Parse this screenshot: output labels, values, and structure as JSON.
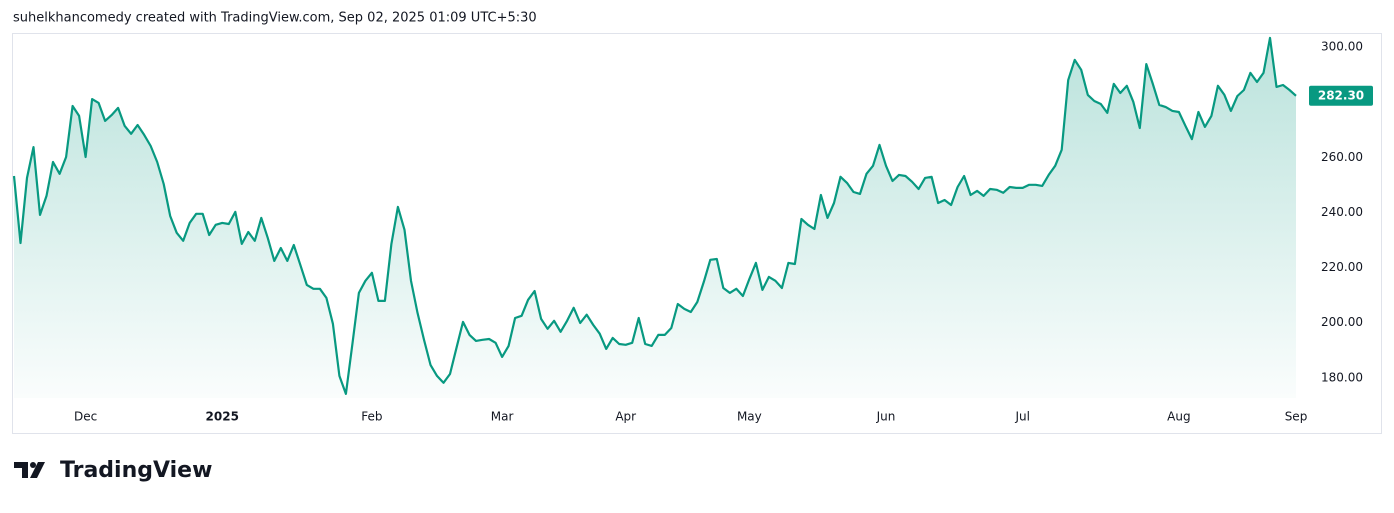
{
  "header": "suhelkhancomedy created with TradingView.com, Sep 02, 2025 01:09 UTC+5:30",
  "footer_brand": "TradingView",
  "chart_data": {
    "type": "area",
    "color": "#089981",
    "values": [
      253.2,
      228.9,
      252.5,
      263.7,
      239.1,
      246,
      258.3,
      254,
      260.1,
      278.6,
      275,
      260.1,
      281.1,
      279.7,
      273.2,
      275.3,
      277.9,
      271.4,
      268.5,
      271.7,
      268.1,
      264.1,
      258.3,
      250.3,
      238.7,
      232.6,
      229.7,
      236.2,
      239.5,
      239.5,
      231.8,
      235.5,
      236.2,
      235.8,
      240.2,
      228.6,
      232.9,
      229.7,
      238,
      230.7,
      222.4,
      227.1,
      222.4,
      228.2,
      221,
      213.7,
      212.3,
      212.3,
      209,
      199.6,
      180.7,
      174.2,
      192.3,
      210.8,
      215.2,
      218.1,
      207.9,
      207.9,
      228.6,
      242,
      233.7,
      215.2,
      203.6,
      193.8,
      184.7,
      180.7,
      178.2,
      181.4,
      190.9,
      200.3,
      195.6,
      193.4,
      193.8,
      194.1,
      192.7,
      187.6,
      191.6,
      201.7,
      202.5,
      208.3,
      211.5,
      201.4,
      197.8,
      200.7,
      196.7,
      200.7,
      205.4,
      199.9,
      202.9,
      199.2,
      196,
      190.5,
      194.5,
      192.3,
      192,
      192.7,
      201.7,
      192.3,
      191.6,
      195.6,
      195.6,
      198.1,
      206.8,
      205,
      203.9,
      207.5,
      214.8,
      222.8,
      223.1,
      212.6,
      210.8,
      212.3,
      209.7,
      215.9,
      221.7,
      211.9,
      216.6,
      215.2,
      212.6,
      221.7,
      221.3,
      237.6,
      235.5,
      234,
      246.3,
      238,
      243.4,
      252.9,
      250.7,
      247.4,
      246.7,
      254,
      256.9,
      264.5,
      256.9,
      251.4,
      253.6,
      253.2,
      251.1,
      248.5,
      252.5,
      252.9,
      243.4,
      244.5,
      242.7,
      249.2,
      253.2,
      246.3,
      247.8,
      246,
      248.5,
      248.2,
      247.1,
      249.2,
      248.9,
      248.9,
      250,
      250,
      249.6,
      253.6,
      256.9,
      262.7,
      288,
      295.3,
      291.7,
      282.6,
      280.4,
      279.3,
      276.1,
      286.6,
      283.3,
      285.9,
      280.1,
      270.6,
      293.8,
      286.6,
      279,
      278.2,
      276.8,
      276.4,
      271.4,
      266.6,
      276.4,
      271,
      275,
      285.9,
      282.6,
      276.8,
      282.2,
      284.4,
      290.6,
      287.3,
      290.6,
      303.3,
      285.5,
      286.2,
      284.4,
      282.3
    ],
    "xlim": [
      0,
      197
    ],
    "xticks": [
      {
        "value": 11,
        "label": "Dec"
      },
      {
        "value": 32,
        "label": "2025"
      },
      {
        "value": 55,
        "label": "Feb"
      },
      {
        "value": 75,
        "label": "Mar"
      },
      {
        "value": 94,
        "label": "Apr"
      },
      {
        "value": 113,
        "label": "May"
      },
      {
        "value": 134,
        "label": "Jun"
      },
      {
        "value": 155,
        "label": "Jul"
      },
      {
        "value": 179,
        "label": "Aug"
      },
      {
        "value": 197,
        "label": "Sep"
      }
    ],
    "ylim": [
      172.7,
      304.7
    ],
    "yticks": [
      {
        "value": 180,
        "label": "180.00"
      },
      {
        "value": 200,
        "label": "200.00"
      },
      {
        "value": 220,
        "label": "220.00"
      },
      {
        "value": 240,
        "label": "240.00"
      },
      {
        "value": 260,
        "label": "260.00"
      },
      {
        "value": 280,
        "label": "280.00"
      },
      {
        "value": 300,
        "label": "300.00"
      }
    ],
    "price_label": {
      "value": 282.3,
      "label": "282.30"
    }
  }
}
